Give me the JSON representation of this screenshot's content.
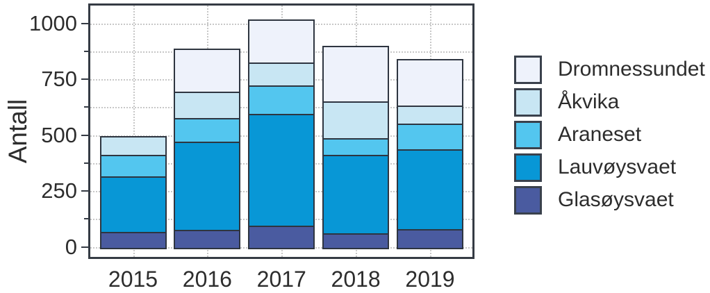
{
  "chart_data": {
    "type": "bar",
    "stacked": true,
    "title": "",
    "xlabel": "",
    "ylabel": "Antall",
    "categories": [
      "2015",
      "2016",
      "2017",
      "2018",
      "2019"
    ],
    "series": [
      {
        "name": "Glasøysvaet",
        "color": "#4a5ba0",
        "values": [
          75,
          85,
          105,
          70,
          90
        ]
      },
      {
        "name": "Lauvøysvaet",
        "color": "#0897d6",
        "values": [
          250,
          395,
          500,
          350,
          355
        ]
      },
      {
        "name": "Araneset",
        "color": "#53c6ef",
        "values": [
          95,
          105,
          125,
          75,
          115
        ]
      },
      {
        "name": "Åkvika",
        "color": "#c8e6f3",
        "values": [
          85,
          120,
          105,
          165,
          80
        ]
      },
      {
        "name": "Dromnessundet",
        "color": "#eef2fb",
        "values": [
          0,
          190,
          190,
          250,
          210
        ]
      }
    ],
    "y_ticks": [
      0,
      250,
      500,
      750,
      1000
    ],
    "y_minor_ticks": [
      125,
      375,
      625,
      875
    ],
    "ylim": [
      0,
      1050
    ],
    "grid": "dotted",
    "legend_position": "right",
    "legend": [
      {
        "label": "Dromnessundet",
        "color": "#eef2fb"
      },
      {
        "label": "Åkvika",
        "color": "#c8e6f3"
      },
      {
        "label": "Araneset",
        "color": "#53c6ef"
      },
      {
        "label": "Lauvøysvaet",
        "color": "#0897d6"
      },
      {
        "label": "Glasøysvaet",
        "color": "#4a5ba0"
      }
    ]
  }
}
